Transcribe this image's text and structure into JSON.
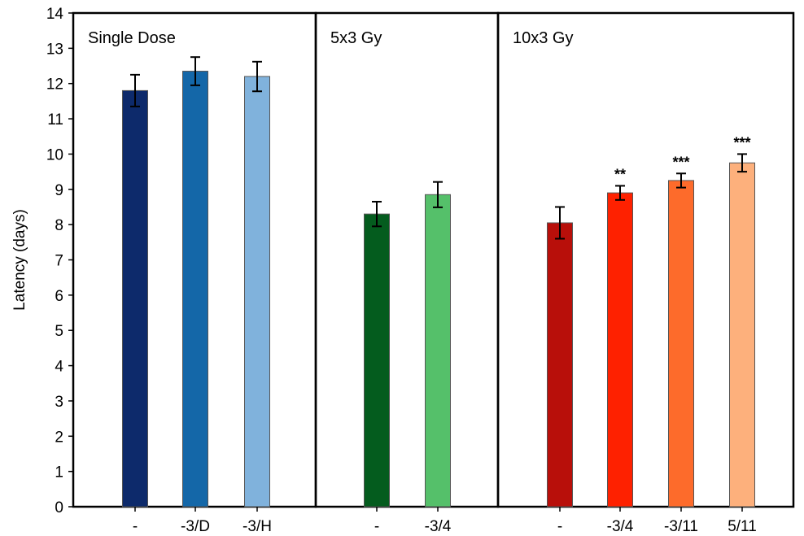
{
  "chart_data": {
    "type": "bar",
    "ylabel": "Latency (days)",
    "ylim": [
      0,
      14
    ],
    "yticks": [
      0,
      1,
      2,
      3,
      4,
      5,
      6,
      7,
      8,
      9,
      10,
      11,
      12,
      13,
      14
    ],
    "grid": false,
    "panels": [
      {
        "title": "Single Dose",
        "bars": [
          {
            "category": "-",
            "value": 11.8,
            "error": 0.45,
            "color": "#0d2a6b",
            "significance": ""
          },
          {
            "category": "-3/D",
            "value": 12.35,
            "error": 0.4,
            "color": "#1467a8",
            "significance": ""
          },
          {
            "category": "-3/H",
            "value": 12.2,
            "error": 0.42,
            "color": "#80b2dc",
            "significance": ""
          }
        ]
      },
      {
        "title": "5x3 Gy",
        "bars": [
          {
            "category": "-",
            "value": 8.3,
            "error": 0.35,
            "color": "#045c1e",
            "significance": ""
          },
          {
            "category": "-3/4",
            "value": 8.85,
            "error": 0.36,
            "color": "#55c06a",
            "significance": ""
          }
        ]
      },
      {
        "title": "10x3 Gy",
        "bars": [
          {
            "category": "-",
            "value": 8.05,
            "error": 0.45,
            "color": "#b80f0a",
            "significance": ""
          },
          {
            "category": "-3/4",
            "value": 8.9,
            "error": 0.2,
            "color": "#fe2100",
            "significance": "**"
          },
          {
            "category": "-3/11",
            "value": 9.25,
            "error": 0.2,
            "color": "#fd6b2b",
            "significance": "***"
          },
          {
            "category": "5/11",
            "value": 9.75,
            "error": 0.25,
            "color": "#fdb07c",
            "significance": "***"
          }
        ]
      }
    ]
  }
}
